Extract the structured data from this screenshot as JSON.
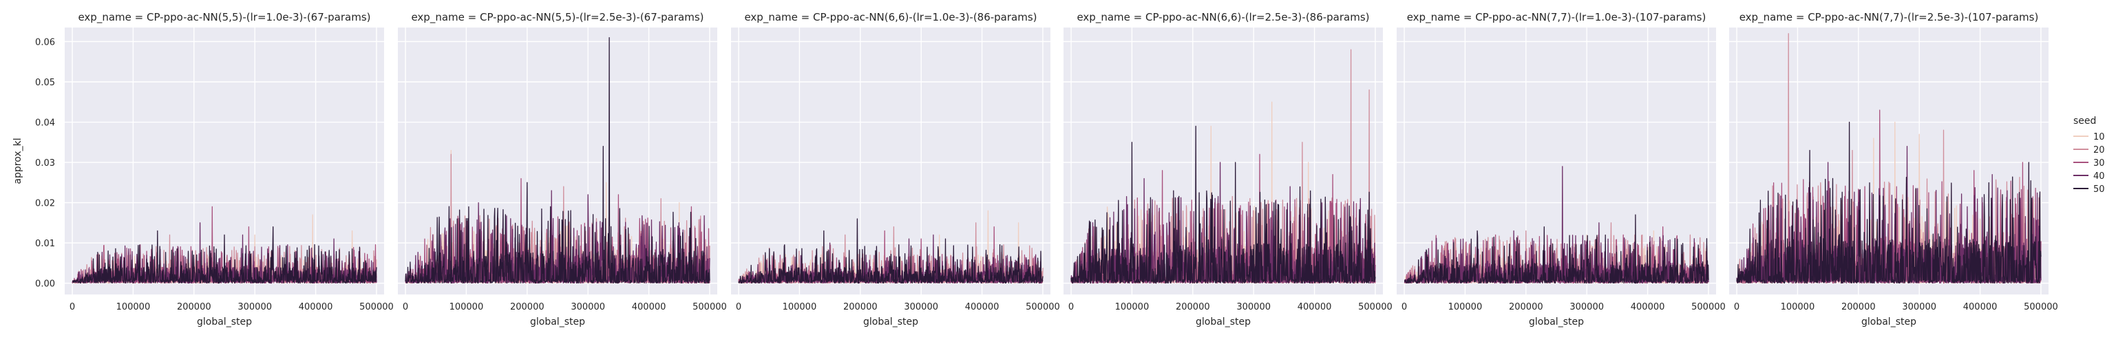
{
  "chart_data": [
    {
      "type": "line",
      "title": "exp_name = CP-ppo-ac-NN(5,5)-(lr=1.0e-3)-(67-params)",
      "xlabel": "global_step",
      "ylabel": "approx_kl",
      "xlim": [
        -12500,
        512500
      ],
      "ylim": [
        -0.0028,
        0.0635
      ],
      "xticks": [
        0,
        100000,
        200000,
        300000,
        400000,
        500000
      ],
      "xtick_labels": [
        "0",
        "100000",
        "200000",
        "300000",
        "400000",
        "500000"
      ],
      "yticks": [
        0.0,
        0.01,
        0.02,
        0.03,
        0.04,
        0.05,
        0.06
      ],
      "ytick_labels": [
        "0.00",
        "0.01",
        "0.02",
        "0.03",
        "0.04",
        "0.05",
        "0.06"
      ],
      "series": [
        {
          "name": "10",
          "peaks": [
            [
              395000,
              0.017
            ],
            [
              300000,
              0.012
            ],
            [
              460000,
              0.013
            ]
          ],
          "typical": 0.003
        },
        {
          "name": "20",
          "peaks": [
            [
              230000,
              0.015
            ],
            [
              160000,
              0.012
            ],
            [
              330000,
              0.011
            ]
          ],
          "typical": 0.004
        },
        {
          "name": "30",
          "peaks": [
            [
              230000,
              0.019
            ],
            [
              75000,
              0.006
            ],
            [
              290000,
              0.014
            ]
          ],
          "typical": 0.004
        },
        {
          "name": "40",
          "peaks": [
            [
              210000,
              0.015
            ],
            [
              280000,
              0.012
            ],
            [
              430000,
              0.011
            ]
          ],
          "typical": 0.004
        },
        {
          "name": "50",
          "peaks": [
            [
              330000,
              0.014
            ],
            [
              140000,
              0.013
            ],
            [
              250000,
              0.012
            ]
          ],
          "typical": 0.004
        }
      ]
    },
    {
      "type": "line",
      "title": "exp_name = CP-ppo-ac-NN(5,5)-(lr=2.5e-3)-(67-params)",
      "xlabel": "global_step",
      "ylabel": "",
      "xlim": [
        -12500,
        512500
      ],
      "ylim": [
        -0.0028,
        0.0635
      ],
      "xticks": [
        0,
        100000,
        200000,
        300000,
        400000,
        500000
      ],
      "xtick_labels": [
        "0",
        "100000",
        "200000",
        "300000",
        "400000",
        "500000"
      ],
      "series": [
        {
          "name": "10",
          "peaks": [
            [
              75000,
              0.033
            ],
            [
              330000,
              0.025
            ],
            [
              450000,
              0.02
            ]
          ],
          "typical": 0.006
        },
        {
          "name": "20",
          "peaks": [
            [
              75000,
              0.032
            ],
            [
              260000,
              0.024
            ],
            [
              420000,
              0.021
            ]
          ],
          "typical": 0.007
        },
        {
          "name": "30",
          "peaks": [
            [
              190000,
              0.026
            ],
            [
              350000,
              0.022
            ],
            [
              470000,
              0.019
            ]
          ],
          "typical": 0.007
        },
        {
          "name": "40",
          "peaks": [
            [
              240000,
              0.023
            ],
            [
              300000,
              0.022
            ],
            [
              120000,
              0.02
            ]
          ],
          "typical": 0.007
        },
        {
          "name": "50",
          "peaks": [
            [
              335000,
              0.061
            ],
            [
              325000,
              0.034
            ],
            [
              200000,
              0.025
            ]
          ],
          "typical": 0.008
        }
      ]
    },
    {
      "type": "line",
      "title": "exp_name = CP-ppo-ac-NN(6,6)-(lr=1.0e-3)-(86-params)",
      "xlabel": "global_step",
      "ylabel": "",
      "xlim": [
        -12500,
        512500
      ],
      "ylim": [
        -0.0028,
        0.0635
      ],
      "xticks": [
        0,
        100000,
        200000,
        300000,
        400000,
        500000
      ],
      "xtick_labels": [
        "0",
        "100000",
        "200000",
        "300000",
        "400000",
        "500000"
      ],
      "series": [
        {
          "name": "10",
          "peaks": [
            [
              410000,
              0.018
            ],
            [
              460000,
              0.015
            ],
            [
              330000,
              0.012
            ]
          ],
          "typical": 0.003
        },
        {
          "name": "20",
          "peaks": [
            [
              255000,
              0.014
            ],
            [
              390000,
              0.015
            ],
            [
              175000,
              0.012
            ]
          ],
          "typical": 0.004
        },
        {
          "name": "30",
          "peaks": [
            [
              240000,
              0.013
            ],
            [
              420000,
              0.014
            ],
            [
              300000,
              0.011
            ]
          ],
          "typical": 0.003
        },
        {
          "name": "40",
          "peaks": [
            [
              320000,
              0.012
            ],
            [
              280000,
              0.011
            ],
            [
              150000,
              0.01
            ]
          ],
          "typical": 0.003
        },
        {
          "name": "50",
          "peaks": [
            [
              195000,
              0.016
            ],
            [
              140000,
              0.013
            ],
            [
              340000,
              0.011
            ]
          ],
          "typical": 0.004
        }
      ]
    },
    {
      "type": "line",
      "title": "exp_name = CP-ppo-ac-NN(6,6)-(lr=2.5e-3)-(86-params)",
      "xlabel": "global_step",
      "ylabel": "",
      "xlim": [
        -12500,
        512500
      ],
      "ylim": [
        -0.0028,
        0.0635
      ],
      "xticks": [
        0,
        100000,
        200000,
        300000,
        400000,
        500000
      ],
      "xtick_labels": [
        "0",
        "100000",
        "200000",
        "300000",
        "400000",
        "500000"
      ],
      "series": [
        {
          "name": "10",
          "peaks": [
            [
              330000,
              0.045
            ],
            [
              230000,
              0.039
            ],
            [
              390000,
              0.03
            ]
          ],
          "typical": 0.008
        },
        {
          "name": "20",
          "peaks": [
            [
              460000,
              0.058
            ],
            [
              490000,
              0.048
            ],
            [
              380000,
              0.035
            ]
          ],
          "typical": 0.009
        },
        {
          "name": "30",
          "peaks": [
            [
              310000,
              0.032
            ],
            [
              150000,
              0.028
            ],
            [
              430000,
              0.027
            ]
          ],
          "typical": 0.009
        },
        {
          "name": "40",
          "peaks": [
            [
              245000,
              0.03
            ],
            [
              120000,
              0.026
            ],
            [
              360000,
              0.024
            ]
          ],
          "typical": 0.009
        },
        {
          "name": "50",
          "peaks": [
            [
              205000,
              0.039
            ],
            [
              100000,
              0.035
            ],
            [
              270000,
              0.03
            ]
          ],
          "typical": 0.01
        }
      ]
    },
    {
      "type": "line",
      "title": "exp_name = CP-ppo-ac-NN(7,7)-(lr=1.0e-3)-(107-params)",
      "xlabel": "global_step",
      "ylabel": "",
      "xlim": [
        -12500,
        512500
      ],
      "ylim": [
        -0.0028,
        0.0635
      ],
      "xticks": [
        0,
        100000,
        200000,
        300000,
        400000,
        500000
      ],
      "xtick_labels": [
        "0",
        "100000",
        "200000",
        "300000",
        "400000",
        "500000"
      ],
      "series": [
        {
          "name": "10",
          "peaks": [
            [
              100000,
              0.01
            ],
            [
              410000,
              0.013
            ],
            [
              300000,
              0.012
            ]
          ],
          "typical": 0.004
        },
        {
          "name": "20",
          "peaks": [
            [
              340000,
              0.015
            ],
            [
              200000,
              0.013
            ],
            [
              470000,
              0.012
            ]
          ],
          "typical": 0.005
        },
        {
          "name": "30",
          "peaks": [
            [
              425000,
              0.014
            ],
            [
              150000,
              0.012
            ],
            [
              360000,
              0.012
            ]
          ],
          "typical": 0.005
        },
        {
          "name": "40",
          "peaks": [
            [
              260000,
              0.029
            ],
            [
              320000,
              0.015
            ],
            [
              180000,
              0.013
            ]
          ],
          "typical": 0.005
        },
        {
          "name": "50",
          "peaks": [
            [
              380000,
              0.017
            ],
            [
              230000,
              0.014
            ],
            [
              120000,
              0.013
            ]
          ],
          "typical": 0.005
        }
      ]
    },
    {
      "type": "line",
      "title": "exp_name = CP-ppo-ac-NN(7,7)-(lr=2.5e-3)-(107-params)",
      "xlabel": "global_step",
      "ylabel": "",
      "xlim": [
        -12500,
        512500
      ],
      "ylim": [
        -0.0028,
        0.0635
      ],
      "xticks": [
        0,
        100000,
        200000,
        300000,
        400000,
        500000
      ],
      "xtick_labels": [
        "0",
        "100000",
        "200000",
        "300000",
        "400000",
        "500000"
      ],
      "series": [
        {
          "name": "10",
          "peaks": [
            [
              260000,
              0.04
            ],
            [
              300000,
              0.037
            ],
            [
              225000,
              0.036
            ]
          ],
          "typical": 0.009
        },
        {
          "name": "20",
          "peaks": [
            [
              85000,
              0.062
            ],
            [
              190000,
              0.033
            ],
            [
              340000,
              0.038
            ]
          ],
          "typical": 0.011
        },
        {
          "name": "30",
          "peaks": [
            [
              235000,
              0.043
            ],
            [
              390000,
              0.028
            ],
            [
              470000,
              0.03
            ]
          ],
          "typical": 0.011
        },
        {
          "name": "40",
          "peaks": [
            [
              280000,
              0.034
            ],
            [
              150000,
              0.03
            ],
            [
              420000,
              0.027
            ]
          ],
          "typical": 0.01
        },
        {
          "name": "50",
          "peaks": [
            [
              185000,
              0.04
            ],
            [
              120000,
              0.033
            ],
            [
              480000,
              0.03
            ]
          ],
          "typical": 0.011
        }
      ]
    }
  ],
  "legend": {
    "title": "seed",
    "placement": "right",
    "entries": [
      "10",
      "20",
      "30",
      "40",
      "50"
    ],
    "colors": [
      "#f0cfc0",
      "#d08f9c",
      "#a9527e",
      "#6c2e66",
      "#2a1937"
    ]
  }
}
